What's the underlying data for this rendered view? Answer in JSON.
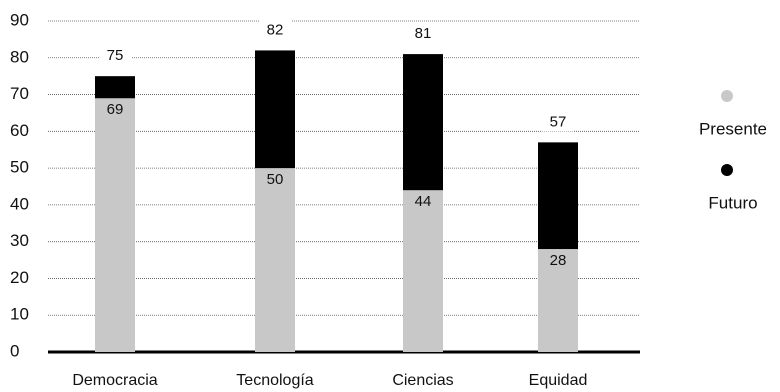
{
  "chart_data": {
    "type": "bar",
    "categories": [
      "Democracia",
      "Tecnología",
      "Ciencias",
      "Equidad"
    ],
    "series": [
      {
        "name": "Futuro",
        "color": "#000000",
        "values": [
          75,
          82,
          81,
          57
        ]
      },
      {
        "name": "Presente",
        "color": "#c8c8c8",
        "values": [
          69,
          50,
          44,
          28
        ]
      }
    ],
    "ylim": [
      0,
      90
    ],
    "yticks": [
      0,
      10,
      20,
      30,
      40,
      50,
      60,
      70,
      80,
      90
    ],
    "grid": true,
    "legend": "right"
  }
}
